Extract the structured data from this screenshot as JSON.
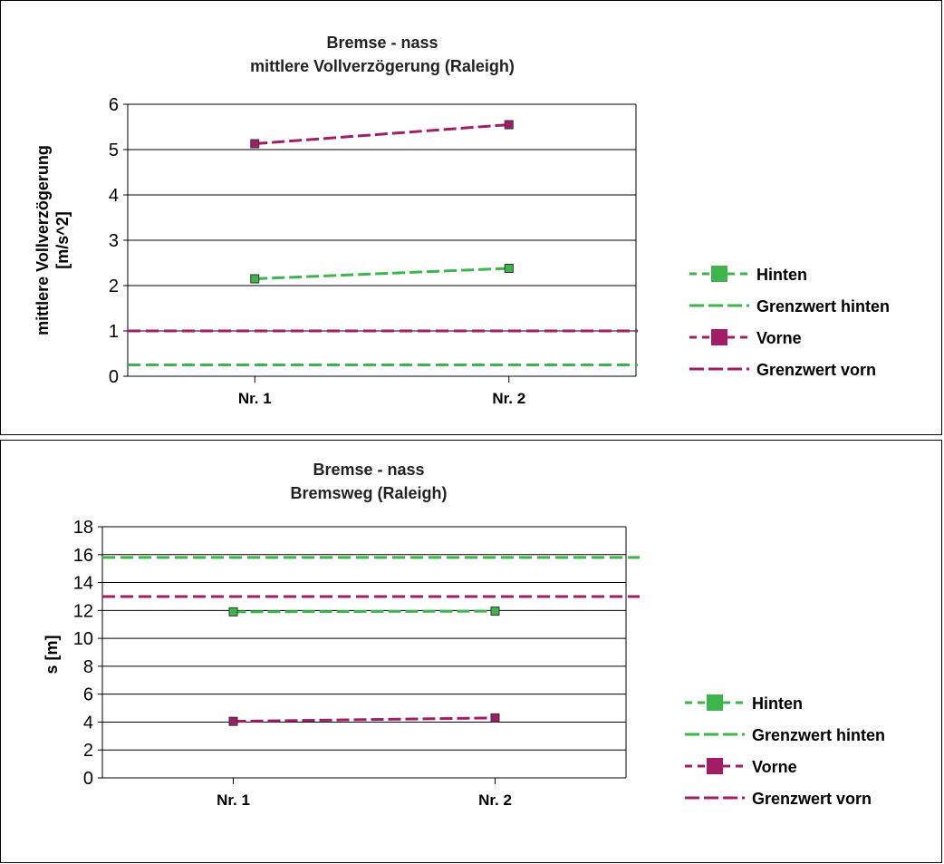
{
  "chart_data": [
    {
      "type": "line",
      "title": "Bremse - nass",
      "subtitle": "mittlere Vollverzögerung (Raleigh)",
      "ylabel_line1": "mittlere Vollverzögerung",
      "ylabel_line2": "[m/s^2]",
      "ylim": [
        0,
        6
      ],
      "yticks": [
        0,
        1,
        2,
        3,
        4,
        5,
        6
      ],
      "categories": [
        "Nr. 1",
        "Nr. 2"
      ],
      "grid": true,
      "legend_position": "right",
      "series": [
        {
          "name": "Hinten",
          "values": [
            2.15,
            2.38
          ],
          "color": "#3cb54a",
          "kind": "measured"
        },
        {
          "name": "Grenzwert hinten",
          "values": [
            0.25,
            0.25
          ],
          "color": "#3cb54a",
          "kind": "limit"
        },
        {
          "name": "Vorne",
          "values": [
            5.13,
            5.55
          ],
          "color": "#a21d67",
          "kind": "measured"
        },
        {
          "name": "Grenzwert vorn",
          "values": [
            1.0,
            1.0
          ],
          "color": "#a21d67",
          "kind": "limit"
        }
      ]
    },
    {
      "type": "line",
      "title": "Bremse - nass",
      "subtitle": "Bremsweg (Raleigh)",
      "ylabel_line1": "s [m]",
      "ylabel_line2": "",
      "ylim": [
        0,
        18
      ],
      "yticks": [
        0,
        2,
        4,
        6,
        8,
        10,
        12,
        14,
        16,
        18
      ],
      "categories": [
        "Nr. 1",
        "Nr. 2"
      ],
      "grid": true,
      "legend_position": "right",
      "series": [
        {
          "name": "Hinten",
          "values": [
            11.9,
            11.95
          ],
          "color": "#3cb54a",
          "kind": "measured"
        },
        {
          "name": "Grenzwert hinten",
          "values": [
            15.8,
            15.8
          ],
          "color": "#3cb54a",
          "kind": "limit"
        },
        {
          "name": "Vorne",
          "values": [
            4.05,
            4.3
          ],
          "color": "#a21d67",
          "kind": "measured"
        },
        {
          "name": "Grenzwert vorn",
          "values": [
            13.0,
            13.0
          ],
          "color": "#a21d67",
          "kind": "limit"
        }
      ]
    }
  ]
}
